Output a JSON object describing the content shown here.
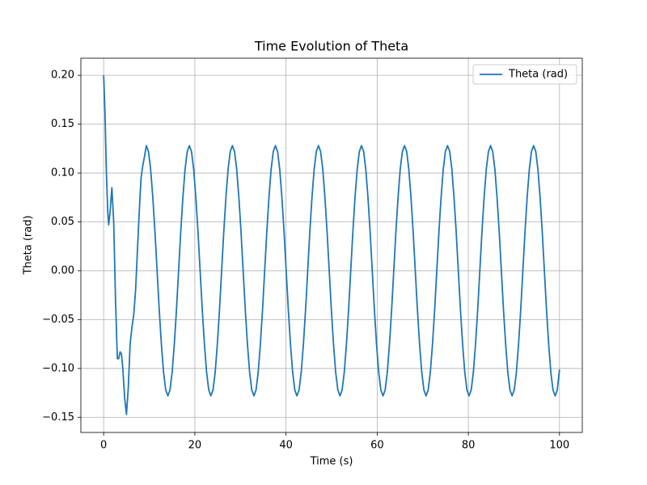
{
  "chart_data": {
    "type": "line",
    "title": "Time Evolution of Theta",
    "x_label": "Time (s)",
    "y_label": "Theta (rad)",
    "xlim": [
      -5,
      105
    ],
    "ylim": [
      -0.1655,
      0.2175
    ],
    "xticks": [
      0,
      20,
      40,
      60,
      80,
      100
    ],
    "yticks": [
      {
        "value": -0.15,
        "label": "−0.15"
      },
      {
        "value": -0.1,
        "label": "−0.10"
      },
      {
        "value": -0.05,
        "label": "−0.05"
      },
      {
        "value": 0,
        "label": "0.00"
      },
      {
        "value": 0.05,
        "label": "0.05"
      },
      {
        "value": 0.1,
        "label": "0.10"
      },
      {
        "value": 0.15,
        "label": "0.15"
      },
      {
        "value": 0.2,
        "label": "0.20"
      }
    ],
    "grid": true,
    "legend_position": "upper right",
    "x": [
      0,
      0.3,
      0.6,
      0.9,
      1.1,
      1.4,
      1.8,
      2.2,
      2.6,
      3.0,
      3.3,
      3.6,
      3.9,
      4.2,
      4.6,
      5.0,
      5.4,
      5.8,
      6.2,
      6.6,
      7.0,
      7.4,
      7.8,
      8.2,
      8.6,
      9.0,
      9.36,
      9.83,
      10.3,
      10.78,
      11.25,
      11.72,
      12.19,
      12.66,
      13.14,
      13.61,
      14.08,
      14.55,
      15.02,
      15.5,
      15.97,
      16.44,
      16.91,
      17.38,
      17.86,
      18.33,
      18.8,
      19.27,
      19.74,
      20.22,
      20.69,
      21.16,
      21.63,
      22.1,
      22.58,
      23.05,
      23.52,
      23.99,
      24.46,
      24.94,
      25.41,
      25.88,
      26.35,
      26.82,
      27.3,
      27.77,
      28.24,
      28.71,
      29.18,
      29.66,
      30.13,
      30.6,
      31.07,
      31.54,
      32.02,
      32.49,
      32.96,
      33.43,
      33.9,
      34.38,
      34.85,
      35.32,
      35.79,
      36.26,
      36.74,
      37.21,
      37.68,
      38.15,
      38.62,
      39.1,
      39.57,
      40.04,
      40.51,
      40.98,
      41.46,
      41.93,
      42.4,
      42.87,
      43.34,
      43.82,
      44.29,
      44.76,
      45.23,
      45.7,
      46.18,
      46.65,
      47.12,
      47.59,
      48.06,
      48.54,
      49.01,
      49.48,
      49.95,
      50.42,
      50.9,
      51.37,
      51.84,
      52.31,
      52.78,
      53.26,
      53.73,
      54.2,
      54.67,
      55.14,
      55.62,
      56.09,
      56.56,
      57.03,
      57.5,
      57.98,
      58.45,
      58.92,
      59.39,
      59.86,
      60.34,
      60.81,
      61.28,
      61.75,
      62.22,
      62.7,
      63.17,
      63.64,
      64.11,
      64.58,
      65.06,
      65.53,
      66,
      66.47,
      66.94,
      67.42,
      67.89,
      68.36,
      68.83,
      69.3,
      69.78,
      70.25,
      70.72,
      71.19,
      71.66,
      72.14,
      72.61,
      73.08,
      73.55,
      74.02,
      74.5,
      74.97,
      75.44,
      75.91,
      76.38,
      76.86,
      77.33,
      77.8,
      78.27,
      78.74,
      79.22,
      79.69,
      80.16,
      80.63,
      81.1,
      81.58,
      82.05,
      82.52,
      82.99,
      83.46,
      83.94,
      84.41,
      84.88,
      85.35,
      85.82,
      86.3,
      86.77,
      87.24,
      87.71,
      88.18,
      88.66,
      89.13,
      89.6,
      90.07,
      90.54,
      91.02,
      91.49,
      91.96,
      92.43,
      92.9,
      93.38,
      93.85,
      94.32,
      94.79,
      95.26,
      95.74,
      96.21,
      96.68,
      97.15,
      97.62,
      98.1,
      98.57,
      99.04,
      99.51,
      100
    ],
    "series": [
      {
        "name": "Theta (rad)",
        "color": "#1f77b4",
        "values": [
          0.2,
          0.16,
          0.1,
          0.06,
          0.047,
          0.06,
          0.085,
          0.05,
          -0.03,
          -0.09,
          -0.09,
          -0.083,
          -0.085,
          -0.1,
          -0.13,
          -0.147,
          -0.12,
          -0.075,
          -0.058,
          -0.045,
          -0.02,
          0.02,
          0.06,
          0.095,
          0.108,
          0.118,
          0.128,
          0.122,
          0.104,
          0.075,
          0.04,
          0,
          -0.04,
          -0.075,
          -0.104,
          -0.122,
          -0.128,
          -0.122,
          -0.104,
          -0.075,
          -0.04,
          0,
          0.04,
          0.075,
          0.104,
          0.122,
          0.128,
          0.122,
          0.104,
          0.075,
          0.04,
          0,
          -0.04,
          -0.075,
          -0.104,
          -0.122,
          -0.128,
          -0.122,
          -0.104,
          -0.075,
          -0.04,
          0,
          0.04,
          0.075,
          0.104,
          0.122,
          0.128,
          0.122,
          0.104,
          0.075,
          0.04,
          0,
          -0.04,
          -0.075,
          -0.104,
          -0.122,
          -0.128,
          -0.122,
          -0.104,
          -0.075,
          -0.04,
          0,
          0.04,
          0.075,
          0.104,
          0.122,
          0.128,
          0.122,
          0.104,
          0.075,
          0.04,
          0,
          -0.04,
          -0.075,
          -0.104,
          -0.122,
          -0.128,
          -0.122,
          -0.104,
          -0.075,
          -0.04,
          0,
          0.04,
          0.075,
          0.104,
          0.122,
          0.128,
          0.122,
          0.104,
          0.075,
          0.04,
          0,
          -0.04,
          -0.075,
          -0.104,
          -0.122,
          -0.128,
          -0.122,
          -0.104,
          -0.075,
          -0.04,
          0,
          0.04,
          0.075,
          0.104,
          0.122,
          0.128,
          0.122,
          0.104,
          0.075,
          0.04,
          0,
          -0.04,
          -0.075,
          -0.104,
          -0.122,
          -0.128,
          -0.122,
          -0.104,
          -0.075,
          -0.04,
          0,
          0.04,
          0.075,
          0.104,
          0.122,
          0.128,
          0.122,
          0.104,
          0.075,
          0.04,
          0,
          -0.04,
          -0.075,
          -0.104,
          -0.122,
          -0.128,
          -0.122,
          -0.104,
          -0.075,
          -0.04,
          0,
          0.04,
          0.075,
          0.104,
          0.122,
          0.128,
          0.122,
          0.104,
          0.075,
          0.04,
          0,
          -0.04,
          -0.075,
          -0.104,
          -0.122,
          -0.128,
          -0.122,
          -0.104,
          -0.075,
          -0.04,
          0,
          0.04,
          0.075,
          0.104,
          0.122,
          0.128,
          0.122,
          0.104,
          0.075,
          0.04,
          0,
          -0.04,
          -0.075,
          -0.104,
          -0.122,
          -0.128,
          -0.122,
          -0.104,
          -0.075,
          -0.04,
          0,
          0.04,
          0.075,
          0.104,
          0.122,
          0.128,
          0.122,
          0.104,
          0.075,
          0.04,
          0,
          -0.04,
          -0.075,
          -0.104,
          -0.122,
          -0.128,
          -0.122,
          -0.101
        ]
      }
    ]
  }
}
